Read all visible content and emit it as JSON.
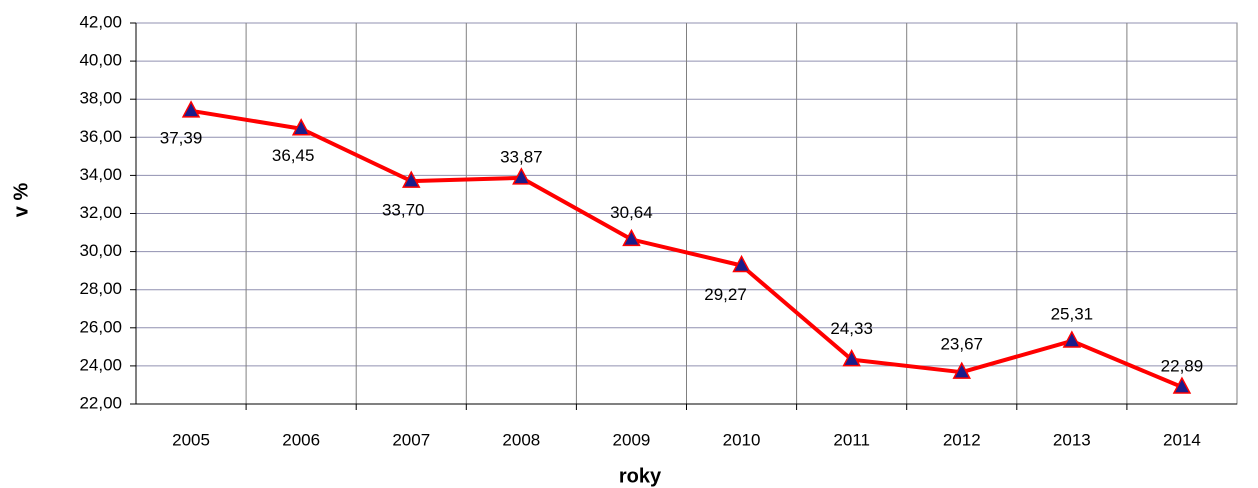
{
  "chart_data": {
    "type": "line",
    "x_label": "roky",
    "y_label": "v %",
    "categories": [
      "2005",
      "2006",
      "2007",
      "2008",
      "2009",
      "2010",
      "2011",
      "2012",
      "2013",
      "2014"
    ],
    "values": [
      37.39,
      36.45,
      33.7,
      33.87,
      30.64,
      29.27,
      24.33,
      23.67,
      25.31,
      22.89
    ],
    "value_labels": [
      "37,39",
      "36,45",
      "33,70",
      "33,87",
      "30,64",
      "29,27",
      "24,33",
      "23,67",
      "25,31",
      "22,89"
    ],
    "color": "#ff0000",
    "marker_color": "#1c1c8a",
    "ylim": [
      22,
      42
    ],
    "yticks": [
      {
        "value": 22,
        "label": "22,00"
      },
      {
        "value": 24,
        "label": "24,00"
      },
      {
        "value": 26,
        "label": "26,00"
      },
      {
        "value": 28,
        "label": "28,00"
      },
      {
        "value": 30,
        "label": "30,00"
      },
      {
        "value": 32,
        "label": "32,00"
      },
      {
        "value": 34,
        "label": "34,00"
      },
      {
        "value": 36,
        "label": "36,00"
      },
      {
        "value": 38,
        "label": "38,00"
      },
      {
        "value": 40,
        "label": "40,00"
      },
      {
        "value": 42,
        "label": "42,00"
      }
    ],
    "grid": true
  }
}
